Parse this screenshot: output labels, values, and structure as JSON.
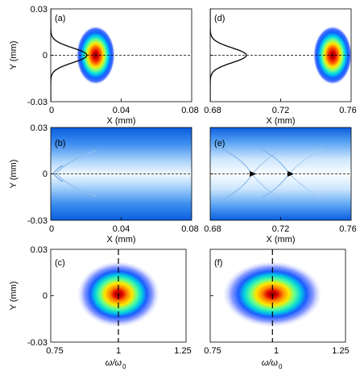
{
  "chart_data": [
    {
      "panel": "(a)",
      "type": "heatmap",
      "xlabel": "X (mm)",
      "ylabel": "Y (mm)",
      "xlim": [
        0,
        0.08
      ],
      "ylim": [
        -0.03,
        0.03
      ],
      "xticks": [
        "0",
        "0.04",
        "0.08"
      ],
      "yticks": [
        "0.03",
        "0",
        "-0.03"
      ],
      "blob": {
        "x": 0.0255,
        "y": 0.0,
        "sx": 0.0055,
        "sy": 0.0095
      },
      "ref_line_y": 0,
      "profile": {
        "x_peak": 0.0205,
        "y_width": 0.0048
      }
    },
    {
      "panel": "(d)",
      "type": "heatmap",
      "xlabel": "X (mm)",
      "ylabel": "",
      "xlim": [
        0.68,
        0.76
      ],
      "ylim": [
        -0.03,
        0.03
      ],
      "xticks": [
        "0.68",
        "0.72",
        "0.76"
      ],
      "yticks": [],
      "blob": {
        "x": 0.7495,
        "y": 0.0,
        "sx": 0.0055,
        "sy": 0.0095
      },
      "ref_line_y": 0,
      "profile": {
        "x_peak": 0.7005,
        "y_width": 0.0048
      }
    },
    {
      "panel": "(b)",
      "type": "heatmap",
      "xlabel": "X (mm)",
      "ylabel": "Y (mm)",
      "xlim": [
        0,
        0.08
      ],
      "ylim": [
        -0.03,
        0.03
      ],
      "xticks": [
        "0",
        "0.04",
        "0.08"
      ],
      "yticks": [
        "0.03",
        "0",
        "-0.03"
      ],
      "ref_line_y": 0,
      "wakes": [
        0.0
      ]
    },
    {
      "panel": "(e)",
      "type": "heatmap",
      "xlabel": "X (mm)",
      "ylabel": "",
      "xlim": [
        0.68,
        0.76
      ],
      "ylim": [
        -0.03,
        0.03
      ],
      "xticks": [
        "0.68",
        "0.72",
        "0.76"
      ],
      "yticks": [],
      "ref_line_y": 0,
      "wakes": [
        0.707,
        0.732
      ]
    },
    {
      "panel": "(c)",
      "type": "heatmap",
      "xlabel": "ω/ω0",
      "ylabel": "Y (mm)",
      "xlim": [
        0.75,
        1.25
      ],
      "ylim": [
        -0.03,
        0.03
      ],
      "xticks": [
        "0.75",
        "1",
        "1.25"
      ],
      "yticks": [
        "0.03",
        "0",
        "-0.03"
      ],
      "ref_line_x": 1.0,
      "blob": {
        "x": 1.0,
        "y": 0.001,
        "sx": 0.075,
        "sy": 0.0105
      }
    },
    {
      "panel": "(f)",
      "type": "heatmap",
      "xlabel": "ω/ω0",
      "ylabel": "",
      "xlim": [
        0.75,
        1.25
      ],
      "ylim": [
        -0.03,
        0.03
      ],
      "xticks": [
        "0.75",
        "1",
        "1.25"
      ],
      "yticks": [],
      "ref_line_x": 0.98,
      "blob": {
        "x": 0.98,
        "y": 0.001,
        "sx": 0.09,
        "sy": 0.0105
      }
    }
  ],
  "axis_text": {
    "y_mm": "Y (mm)",
    "x_mm": "X (mm)",
    "omega": "ω/ω",
    "omega_sub": "0"
  },
  "tick_text": {
    "y_top": "0.03",
    "y_mid": "0",
    "y_bot": "-0.03",
    "x1": [
      "0",
      "0.04",
      "0.08"
    ],
    "x2": [
      "0.68",
      "0.72",
      "0.76"
    ],
    "x3": [
      "0.75",
      "1",
      "1.25"
    ]
  },
  "panel_labels": {
    "a": "(a)",
    "b": "(b)",
    "c": "(c)",
    "d": "(d)",
    "e": "(e)",
    "f": "(f)"
  },
  "colors": {
    "jet_center": "#7f0000",
    "jet_red": "#ff1a00",
    "jet_yellow": "#ffee00",
    "jet_cyan": "#00e0e0",
    "jet_blue": "#1040ff",
    "jet_edge": "#b8c0ff",
    "field_dark": "#1c6fe0",
    "field_light": "#ffffff"
  }
}
